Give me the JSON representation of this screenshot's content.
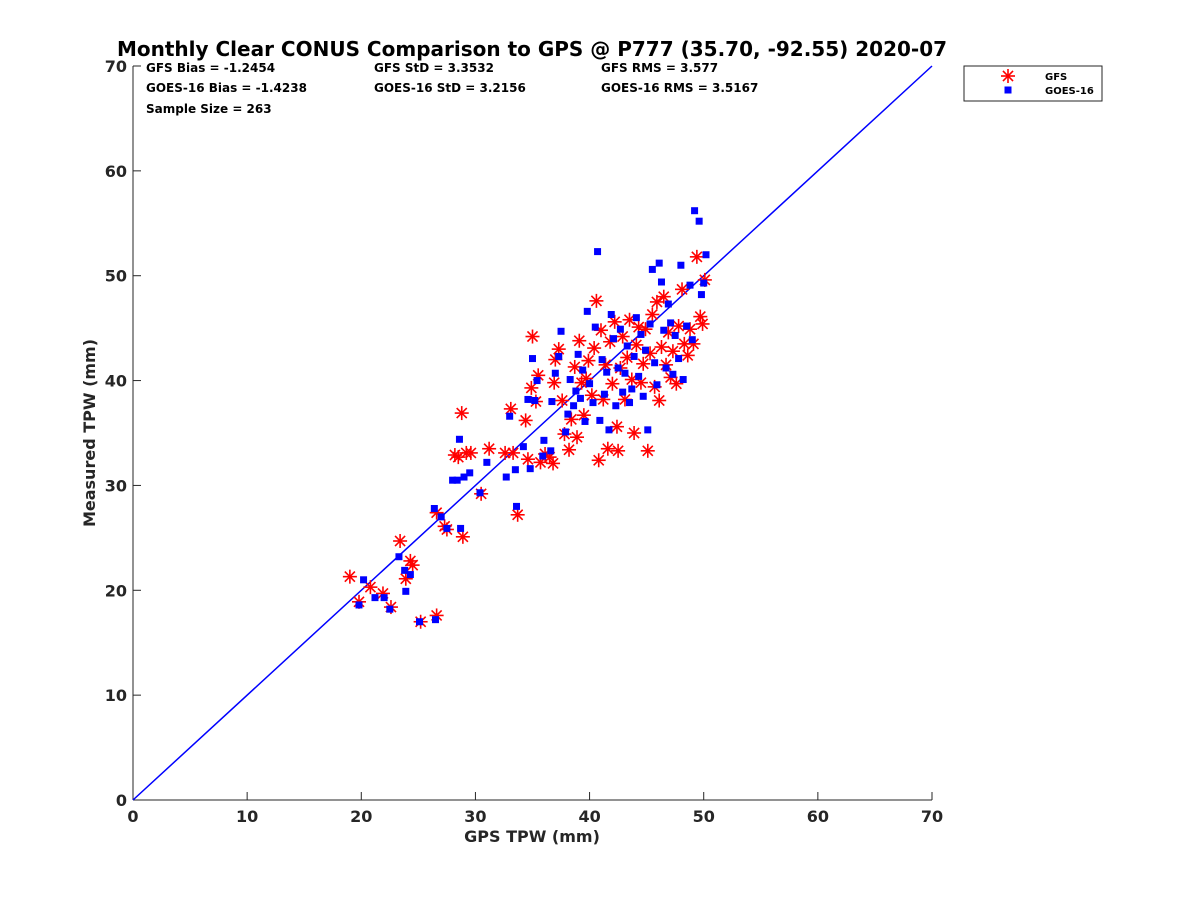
{
  "chart_data": {
    "type": "scatter",
    "title": "Monthly Clear CONUS Comparison to GPS @ P777 (35.70, -92.55) 2020-07",
    "xlabel": "GPS TPW (mm)",
    "ylabel": "Measured TPW (mm)",
    "xlim": [
      0,
      70
    ],
    "ylim": [
      0,
      70
    ],
    "xticks": [
      "0",
      "10",
      "20",
      "30",
      "40",
      "50",
      "60",
      "70"
    ],
    "yticks": [
      "0",
      "10",
      "20",
      "30",
      "40",
      "50",
      "60",
      "70"
    ],
    "grid": false,
    "legend_position": "top-right (outside plot)",
    "stats": [
      {
        "text": "GFS Bias = -1.2454",
        "row": 0,
        "col": 0
      },
      {
        "text": "GFS StD = 3.3532",
        "row": 0,
        "col": 1
      },
      {
        "text": "GFS RMS = 3.577",
        "row": 0,
        "col": 2
      },
      {
        "text": "GOES-16 Bias = -1.4238",
        "row": 1,
        "col": 0
      },
      {
        "text": "GOES-16 StD = 3.2156",
        "row": 1,
        "col": 1
      },
      {
        "text": "GOES-16 RMS = 3.5167",
        "row": 1,
        "col": 2
      },
      {
        "text": "Sample Size = 263",
        "row": 2,
        "col": 0
      }
    ],
    "reference_line": {
      "x": [
        0,
        70
      ],
      "y": [
        0,
        70
      ],
      "color": "#0000ff"
    },
    "series": [
      {
        "name": "GFS",
        "marker": "asterisk",
        "color": "#ff0000",
        "points": [
          [
            19.0,
            21.3
          ],
          [
            19.8,
            18.9
          ],
          [
            20.8,
            20.3
          ],
          [
            21.9,
            19.7
          ],
          [
            22.6,
            18.4
          ],
          [
            23.4,
            24.7
          ],
          [
            23.9,
            21.1
          ],
          [
            24.3,
            22.8
          ],
          [
            24.5,
            22.4
          ],
          [
            25.2,
            17.0
          ],
          [
            26.6,
            17.6
          ],
          [
            26.6,
            27.4
          ],
          [
            27.3,
            26.1
          ],
          [
            27.5,
            25.8
          ],
          [
            28.2,
            32.9
          ],
          [
            28.5,
            32.7
          ],
          [
            28.8,
            36.9
          ],
          [
            28.9,
            25.1
          ],
          [
            29.2,
            33.1
          ],
          [
            29.6,
            33.1
          ],
          [
            30.5,
            29.2
          ],
          [
            31.2,
            33.5
          ],
          [
            32.6,
            33.1
          ],
          [
            33.1,
            37.3
          ],
          [
            33.3,
            33.1
          ],
          [
            33.7,
            27.2
          ],
          [
            34.4,
            36.2
          ],
          [
            34.6,
            32.5
          ],
          [
            34.9,
            39.3
          ],
          [
            35.0,
            44.2
          ],
          [
            35.3,
            38.0
          ],
          [
            35.5,
            40.5
          ],
          [
            35.7,
            32.2
          ],
          [
            36.1,
            33.0
          ],
          [
            36.5,
            32.7
          ],
          [
            36.8,
            32.1
          ],
          [
            36.9,
            39.8
          ],
          [
            37.0,
            42.0
          ],
          [
            37.3,
            43.0
          ],
          [
            37.6,
            38.1
          ],
          [
            37.8,
            34.9
          ],
          [
            38.2,
            33.4
          ],
          [
            38.4,
            36.3
          ],
          [
            38.7,
            41.3
          ],
          [
            38.9,
            34.6
          ],
          [
            39.1,
            43.8
          ],
          [
            39.3,
            39.8
          ],
          [
            39.5,
            36.7
          ],
          [
            39.7,
            40.2
          ],
          [
            39.9,
            41.9
          ],
          [
            40.2,
            38.6
          ],
          [
            40.4,
            43.1
          ],
          [
            40.6,
            47.6
          ],
          [
            40.8,
            32.4
          ],
          [
            41.0,
            44.8
          ],
          [
            41.2,
            38.2
          ],
          [
            41.4,
            41.5
          ],
          [
            41.6,
            33.5
          ],
          [
            41.8,
            43.7
          ],
          [
            42.0,
            39.7
          ],
          [
            42.2,
            45.6
          ],
          [
            42.4,
            35.6
          ],
          [
            42.5,
            33.3
          ],
          [
            42.7,
            41.2
          ],
          [
            42.9,
            44.2
          ],
          [
            43.1,
            38.2
          ],
          [
            43.3,
            42.2
          ],
          [
            43.5,
            45.8
          ],
          [
            43.7,
            40.1
          ],
          [
            43.9,
            35.0
          ],
          [
            44.1,
            43.4
          ],
          [
            44.3,
            45.1
          ],
          [
            44.5,
            39.8
          ],
          [
            44.7,
            41.6
          ],
          [
            44.9,
            44.9
          ],
          [
            45.1,
            33.3
          ],
          [
            45.3,
            42.6
          ],
          [
            45.5,
            46.3
          ],
          [
            45.7,
            39.4
          ],
          [
            45.9,
            47.5
          ],
          [
            46.1,
            38.1
          ],
          [
            46.3,
            43.2
          ],
          [
            46.5,
            48.0
          ],
          [
            46.7,
            41.5
          ],
          [
            46.9,
            44.6
          ],
          [
            47.1,
            40.3
          ],
          [
            47.3,
            42.8
          ],
          [
            47.6,
            39.7
          ],
          [
            47.8,
            45.2
          ],
          [
            48.1,
            48.7
          ],
          [
            48.3,
            43.5
          ],
          [
            48.6,
            42.4
          ],
          [
            48.8,
            44.9
          ],
          [
            49.1,
            43.5
          ],
          [
            49.4,
            51.8
          ],
          [
            49.7,
            46.1
          ],
          [
            49.9,
            45.4
          ],
          [
            50.1,
            49.6
          ]
        ]
      },
      {
        "name": "GOES-16",
        "marker": "square",
        "color": "#0000ff",
        "points": [
          [
            19.8,
            18.6
          ],
          [
            20.2,
            21.0
          ],
          [
            21.2,
            19.3
          ],
          [
            22.0,
            19.3
          ],
          [
            22.5,
            18.2
          ],
          [
            23.3,
            23.2
          ],
          [
            23.8,
            21.9
          ],
          [
            23.9,
            19.9
          ],
          [
            24.3,
            21.5
          ],
          [
            25.1,
            17.0
          ],
          [
            26.5,
            17.2
          ],
          [
            26.4,
            27.8
          ],
          [
            27.0,
            27.0
          ],
          [
            27.5,
            25.9
          ],
          [
            28.0,
            30.5
          ],
          [
            28.4,
            30.5
          ],
          [
            28.6,
            34.4
          ],
          [
            28.7,
            25.9
          ],
          [
            29.0,
            30.8
          ],
          [
            29.5,
            31.2
          ],
          [
            30.4,
            29.3
          ],
          [
            31.0,
            32.2
          ],
          [
            32.7,
            30.8
          ],
          [
            33.0,
            36.6
          ],
          [
            33.5,
            31.5
          ],
          [
            33.6,
            28.0
          ],
          [
            34.2,
            33.7
          ],
          [
            34.8,
            31.6
          ],
          [
            34.6,
            38.2
          ],
          [
            35.0,
            42.1
          ],
          [
            35.2,
            38.1
          ],
          [
            35.4,
            40.0
          ],
          [
            35.9,
            32.8
          ],
          [
            36.0,
            34.3
          ],
          [
            36.6,
            33.3
          ],
          [
            36.7,
            38.0
          ],
          [
            37.0,
            40.7
          ],
          [
            37.3,
            42.3
          ],
          [
            37.5,
            44.7
          ],
          [
            37.9,
            35.1
          ],
          [
            38.1,
            36.8
          ],
          [
            38.3,
            40.1
          ],
          [
            38.6,
            37.6
          ],
          [
            38.8,
            39.0
          ],
          [
            39.0,
            42.5
          ],
          [
            39.2,
            38.3
          ],
          [
            39.4,
            41.0
          ],
          [
            39.6,
            36.1
          ],
          [
            39.8,
            46.6
          ],
          [
            40.0,
            39.7
          ],
          [
            40.3,
            37.9
          ],
          [
            40.5,
            45.1
          ],
          [
            40.7,
            52.3
          ],
          [
            40.9,
            36.2
          ],
          [
            41.1,
            42.0
          ],
          [
            41.3,
            38.7
          ],
          [
            41.5,
            40.8
          ],
          [
            41.7,
            35.3
          ],
          [
            41.9,
            46.3
          ],
          [
            42.1,
            44.0
          ],
          [
            42.3,
            37.6
          ],
          [
            42.5,
            41.2
          ],
          [
            42.7,
            44.9
          ],
          [
            42.9,
            38.9
          ],
          [
            43.1,
            40.7
          ],
          [
            43.3,
            43.3
          ],
          [
            43.5,
            37.9
          ],
          [
            43.7,
            39.2
          ],
          [
            43.9,
            42.3
          ],
          [
            44.1,
            46.0
          ],
          [
            44.3,
            40.4
          ],
          [
            44.5,
            44.4
          ],
          [
            44.7,
            38.5
          ],
          [
            44.9,
            42.9
          ],
          [
            45.1,
            35.3
          ],
          [
            45.3,
            45.4
          ],
          [
            45.5,
            50.6
          ],
          [
            45.7,
            41.7
          ],
          [
            45.9,
            39.6
          ],
          [
            46.1,
            51.2
          ],
          [
            46.3,
            49.4
          ],
          [
            46.5,
            44.8
          ],
          [
            46.7,
            41.2
          ],
          [
            46.9,
            47.3
          ],
          [
            47.1,
            45.5
          ],
          [
            47.3,
            40.6
          ],
          [
            47.5,
            44.3
          ],
          [
            47.8,
            42.1
          ],
          [
            48.0,
            51.0
          ],
          [
            48.2,
            40.1
          ],
          [
            48.5,
            45.2
          ],
          [
            48.8,
            49.1
          ],
          [
            49.2,
            56.2
          ],
          [
            49.6,
            55.2
          ],
          [
            49.8,
            48.2
          ],
          [
            50.0,
            49.3
          ],
          [
            50.2,
            52.0
          ],
          [
            49.0,
            43.9
          ]
        ]
      }
    ]
  }
}
